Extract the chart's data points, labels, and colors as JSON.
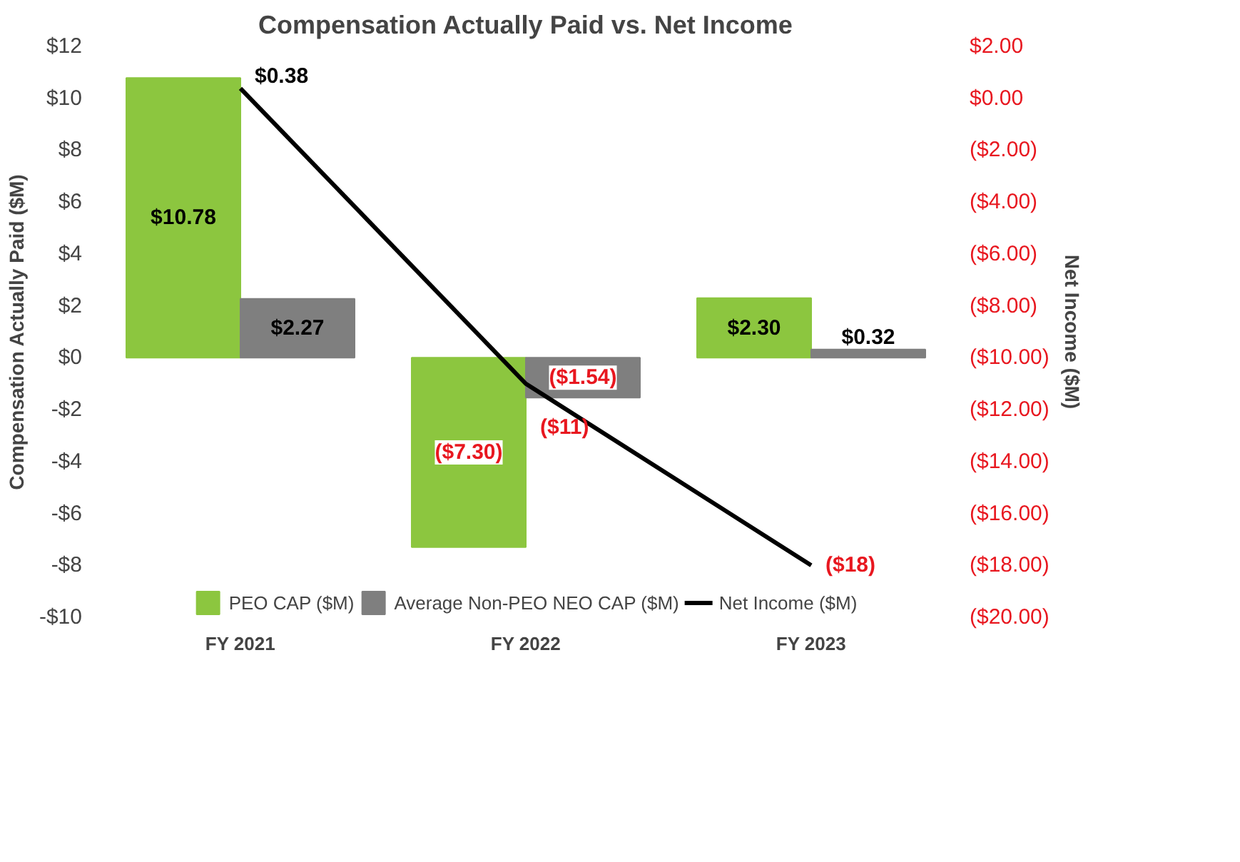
{
  "chart_data": {
    "type": "bar",
    "title": "Compensation Actually Paid vs. Net Income",
    "ylabel": "Compensation Actually Paid ($M)",
    "y2label": "Net Income ($M)",
    "categories": [
      "FY 2021",
      "FY 2022",
      "FY 2023"
    ],
    "series": [
      {
        "name": "PEO CAP ($M)",
        "color": "#8cc63f",
        "values": [
          10.78,
          -7.3,
          2.3
        ],
        "value_labels": [
          "$10.78",
          "($7.30)",
          "$2.30"
        ]
      },
      {
        "name": "Average Non-PEO NEO CAP ($M)",
        "color": "#7f7f7f",
        "values": [
          2.27,
          -1.54,
          0.32
        ],
        "value_labels": [
          "$2.27",
          "($1.54)",
          "$0.32"
        ]
      },
      {
        "name": "Net Income ($M)",
        "type": "line",
        "axis": "y2",
        "color": "#000000",
        "values": [
          0.38,
          -11,
          -18
        ],
        "value_labels": [
          "$0.38",
          "($11)",
          "($18)"
        ]
      }
    ],
    "ylim": [
      -10,
      12
    ],
    "yticks": [
      {
        "value": -10,
        "label": "-$10"
      },
      {
        "value": -8,
        "label": "-$8"
      },
      {
        "value": -6,
        "label": "-$6"
      },
      {
        "value": -4,
        "label": "-$4"
      },
      {
        "value": -2,
        "label": "-$2"
      },
      {
        "value": 0,
        "label": "$0"
      },
      {
        "value": 2,
        "label": "$2"
      },
      {
        "value": 4,
        "label": "$4"
      },
      {
        "value": 6,
        "label": "$6"
      },
      {
        "value": 8,
        "label": "$8"
      },
      {
        "value": 10,
        "label": "$10"
      },
      {
        "value": 12,
        "label": "$12"
      }
    ],
    "y2lim": [
      -20,
      2
    ],
    "y2ticks": [
      {
        "value": -20,
        "label": "($20.00)"
      },
      {
        "value": -18,
        "label": "($18.00)"
      },
      {
        "value": -16,
        "label": "($16.00)"
      },
      {
        "value": -14,
        "label": "($14.00)"
      },
      {
        "value": -12,
        "label": "($12.00)"
      },
      {
        "value": -10,
        "label": "($10.00)"
      },
      {
        "value": -8,
        "label": "($8.00)"
      },
      {
        "value": -6,
        "label": "($6.00)"
      },
      {
        "value": -4,
        "label": "($4.00)"
      },
      {
        "value": -2,
        "label": "($2.00)"
      },
      {
        "value": 0,
        "label": "$0.00"
      },
      {
        "value": 2,
        "label": "$2.00"
      }
    ],
    "grid": false,
    "legend": "bottom"
  }
}
